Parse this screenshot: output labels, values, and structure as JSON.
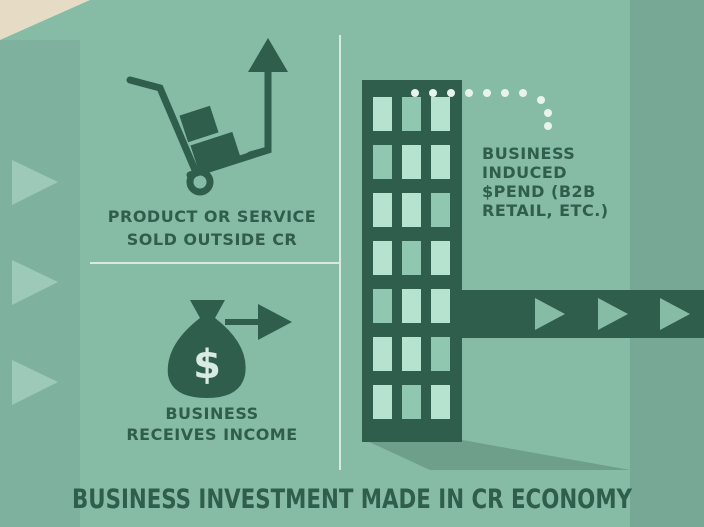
{
  "title": "BUSINESS INVESTMENT MADE IN CR ECONOMY",
  "product_label": {
    "lines": [
      "PRODUCT OR SERVICE",
      "SOLD OUTSIDE CR"
    ]
  },
  "income_label": {
    "lines": [
      "BUSINESS",
      "RECEIVES INCOME"
    ]
  },
  "bag_symbol": "$",
  "building_label": {
    "lines": [
      "BUSINESS",
      "INDUCED",
      "$PEND (B2B",
      "RETAIL, ETC.)"
    ]
  }
}
